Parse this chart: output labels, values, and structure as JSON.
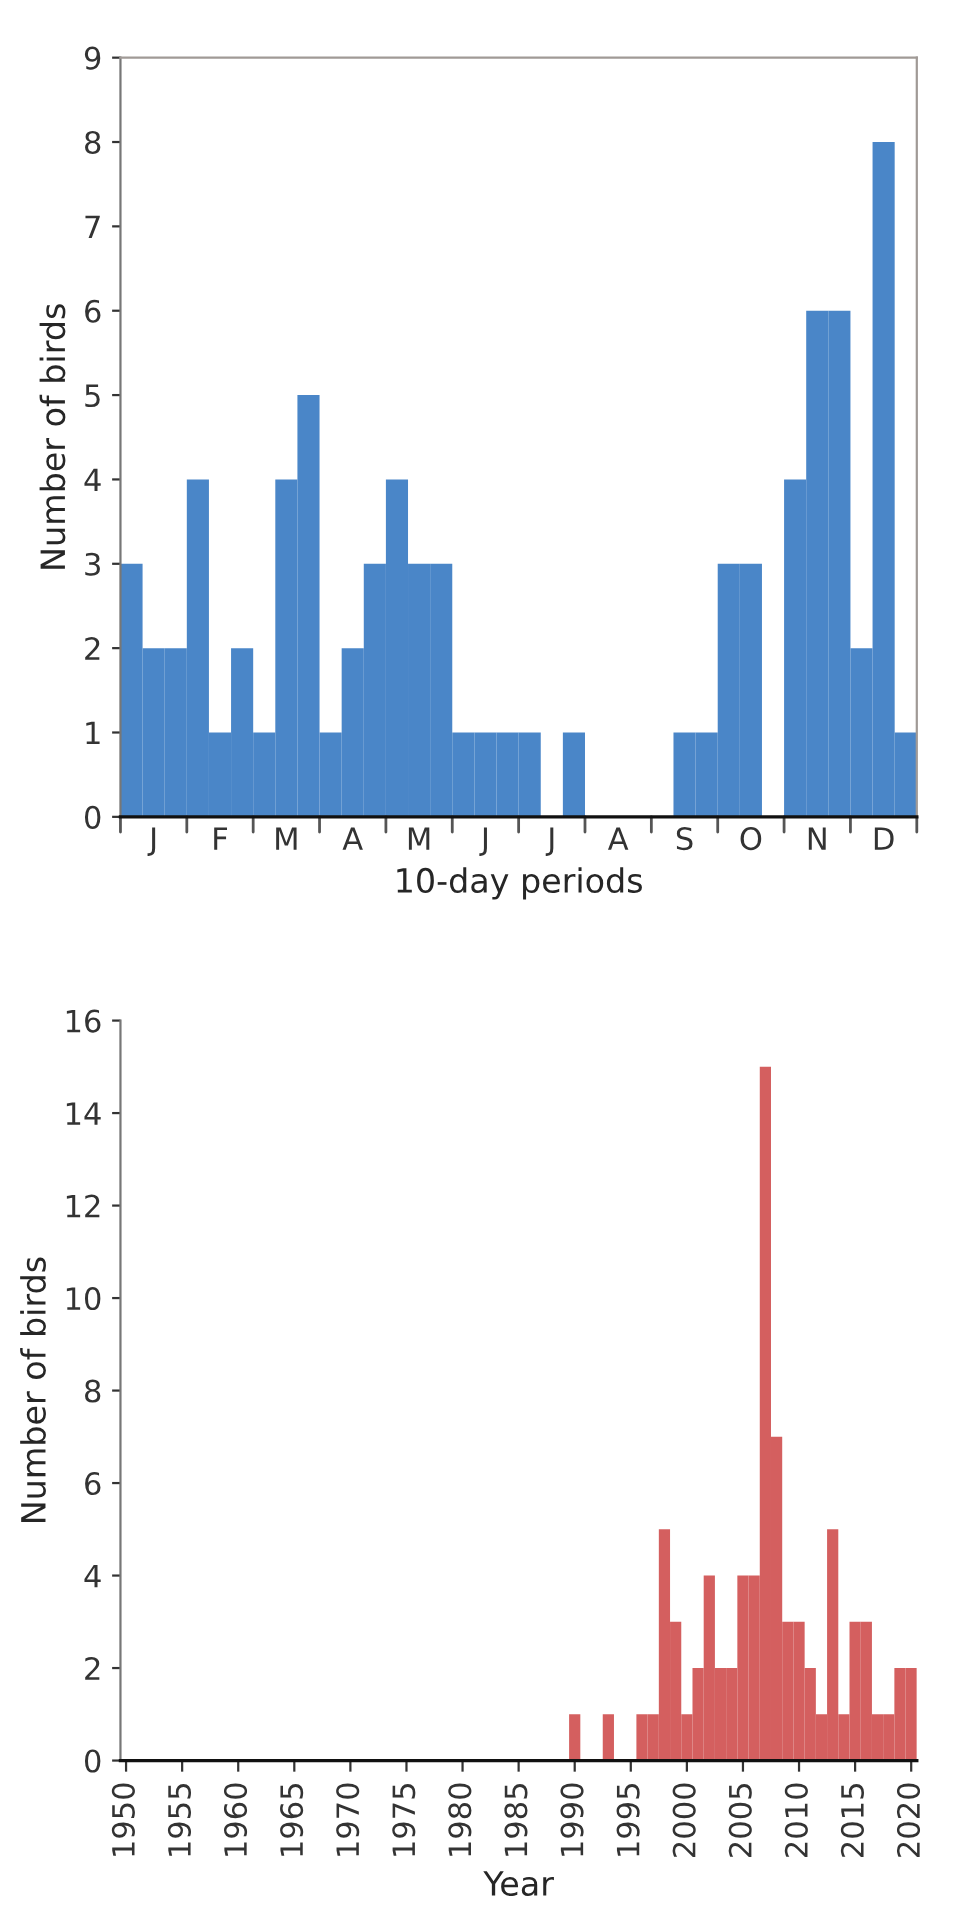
{
  "chart_data": [
    {
      "type": "bar",
      "xlabel": "10-day periods",
      "ylabel": "Number of birds",
      "color": "#4a86c8",
      "categories": [
        null,
        "J",
        null,
        null,
        "F",
        null,
        null,
        "M",
        null,
        null,
        "A",
        null,
        null,
        "M",
        null,
        null,
        "J",
        null,
        null,
        "J",
        null,
        null,
        "A",
        null,
        null,
        "S",
        null,
        null,
        "O",
        null,
        null,
        "N",
        null,
        null,
        "D",
        null
      ],
      "values": [
        3,
        2,
        2,
        4,
        1,
        2,
        1,
        4,
        5,
        1,
        2,
        3,
        4,
        3,
        3,
        1,
        1,
        1,
        1,
        0,
        1,
        0,
        0,
        0,
        0,
        1,
        1,
        3,
        3,
        0,
        4,
        6,
        6,
        2,
        8,
        1
      ],
      "ylim": [
        0,
        9
      ],
      "yticks": [
        0,
        1,
        2,
        3,
        4,
        5,
        6,
        7,
        8,
        9
      ],
      "grid": false
    },
    {
      "type": "bar",
      "xlabel": "Year",
      "ylabel": "Number of birds",
      "color": "#d45f5f",
      "x": [
        1950,
        1951,
        1952,
        1953,
        1954,
        1955,
        1956,
        1957,
        1958,
        1959,
        1960,
        1961,
        1962,
        1963,
        1964,
        1965,
        1966,
        1967,
        1968,
        1969,
        1970,
        1971,
        1972,
        1973,
        1974,
        1975,
        1976,
        1977,
        1978,
        1979,
        1980,
        1981,
        1982,
        1983,
        1984,
        1985,
        1986,
        1987,
        1988,
        1989,
        1990,
        1991,
        1992,
        1993,
        1994,
        1995,
        1996,
        1997,
        1998,
        1999,
        2000,
        2001,
        2002,
        2003,
        2004,
        2005,
        2006,
        2007,
        2008,
        2009,
        2010,
        2011,
        2012,
        2013,
        2014,
        2015,
        2016,
        2017,
        2018,
        2019,
        2020
      ],
      "values": [
        0,
        0,
        0,
        0,
        0,
        0,
        0,
        0,
        0,
        0,
        0,
        0,
        0,
        0,
        0,
        0,
        0,
        0,
        0,
        0,
        0,
        0,
        0,
        0,
        0,
        0,
        0,
        0,
        0,
        0,
        0,
        0,
        0,
        0,
        0,
        0,
        0,
        0,
        0,
        0,
        1,
        0,
        0,
        1,
        0,
        0,
        1,
        1,
        5,
        3,
        1,
        2,
        4,
        2,
        2,
        4,
        4,
        15,
        7,
        3,
        3,
        2,
        1,
        5,
        1,
        3,
        3,
        1,
        1,
        2,
        2
      ],
      "xlim": [
        1949.5,
        2020.5
      ],
      "xticks": [
        1950,
        1955,
        1960,
        1965,
        1970,
        1975,
        1980,
        1985,
        1990,
        1995,
        2000,
        2005,
        2010,
        2015,
        2020
      ],
      "ylim": [
        0,
        16
      ],
      "yticks": [
        0,
        2,
        4,
        6,
        8,
        10,
        12,
        14,
        16
      ],
      "grid": false
    }
  ]
}
